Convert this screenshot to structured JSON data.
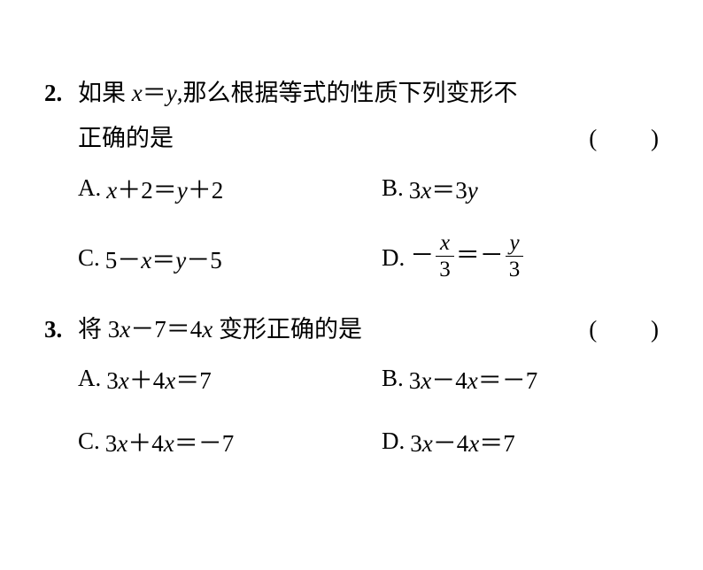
{
  "q2": {
    "num": "2.",
    "stem_line1": "如果 x＝y,那么根据等式的性质下列变形不",
    "stem_line2": "正确的是",
    "paren": "(         )",
    "optA_label": "A. ",
    "optA_math_pre": "x",
    "optA_math_mid": "＋",
    "optA_math_num": "2＝",
    "optA_math_y": "y",
    "optA_math_post": "＋",
    "optA_math_end": "2",
    "optB_label": "B. ",
    "optB_math": "3x＝3y",
    "optB_3a": "3",
    "optB_x": "x",
    "optB_eq": "＝",
    "optB_3b": "3",
    "optB_y": "y",
    "optC_label": "C. ",
    "optC_5": "5",
    "optC_minus": "－",
    "optC_x": "x",
    "optC_eq": "＝",
    "optC_y": "y",
    "optC_minus2": "－",
    "optC_5b": "5",
    "optD_label": "D. ",
    "optD_minus1": "－",
    "optD_num1": "x",
    "optD_den1": "3",
    "optD_eq": "＝",
    "optD_minus2": "－",
    "optD_num2": "y",
    "optD_den2": "3"
  },
  "q3": {
    "num": "3.",
    "stem_pre": "将 ",
    "stem_3": "3",
    "stem_x": "x",
    "stem_minus": "－",
    "stem_7": "7＝4",
    "stem_x2": "x",
    "stem_post": " 变形正确的是",
    "paren": "(         )",
    "optA_label": "A. ",
    "optA_3": "3",
    "optA_x": "x",
    "optA_plus": "＋",
    "optA_4": "4",
    "optA_x2": "x",
    "optA_eq": "＝",
    "optA_7": "7",
    "optB_label": "B. ",
    "optB_3": "3",
    "optB_x": "x",
    "optB_minus": "－",
    "optB_4": "4",
    "optB_x2": "x",
    "optB_eq": "＝",
    "optB_neg": "－",
    "optB_7": "7",
    "optC_label": "C. ",
    "optC_3": "3",
    "optC_x": "x",
    "optC_plus": "＋",
    "optC_4": "4",
    "optC_x2": "x",
    "optC_eq": "＝",
    "optC_neg": "－",
    "optC_7": "7",
    "optD_label": "D. ",
    "optD_3": "3",
    "optD_x": "x",
    "optD_minus": "－",
    "optD_4": "4",
    "optD_x2": "x",
    "optD_eq": "＝",
    "optD_7": "7"
  }
}
